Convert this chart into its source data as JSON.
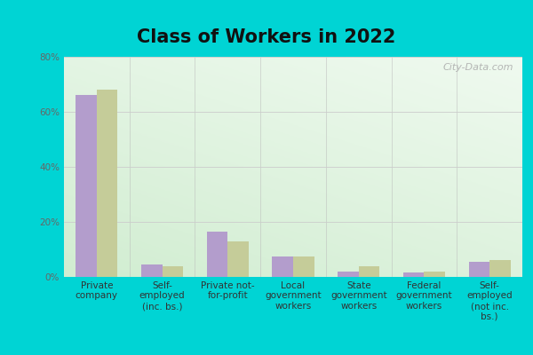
{
  "title": "Class of Workers in 2022",
  "categories": [
    "Private\ncompany",
    "Self-\nemployed\n(inc. bs.)",
    "Private not-\nfor-profit",
    "Local\ngovernment\nworkers",
    "State\ngovernment\nworkers",
    "Federal\ngovernment\nworkers",
    "Self-\nemployed\n(not inc.\nbs.)"
  ],
  "zip_values": [
    66,
    4.5,
    16.5,
    7.5,
    2.0,
    1.5,
    5.5
  ],
  "pa_values": [
    68,
    4.0,
    13.0,
    7.5,
    4.0,
    2.0,
    6.0
  ],
  "zip_color": "#b39dcc",
  "pa_color": "#c5cc99",
  "outer_background": "#00d4d4",
  "ylim": [
    0,
    80
  ],
  "yticks": [
    0,
    20,
    40,
    60,
    80
  ],
  "ytick_labels": [
    "0%",
    "20%",
    "40%",
    "60%",
    "80%"
  ],
  "watermark": "City-Data.com",
  "bar_width": 0.32,
  "title_fontsize": 15,
  "tick_fontsize": 7.5,
  "legend_fontsize": 9
}
